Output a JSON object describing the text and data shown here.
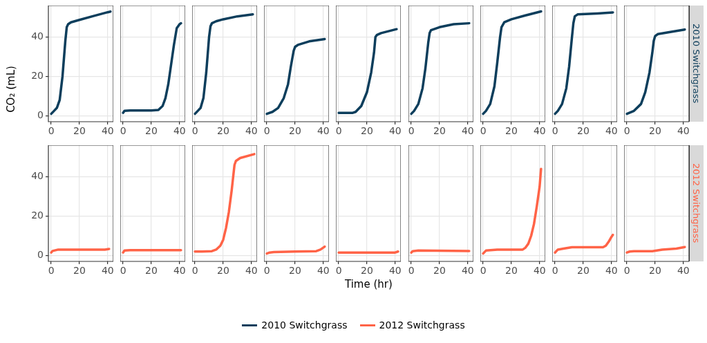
{
  "chart_data": [
    {
      "type": "line",
      "ylabel": "CO₂ (mL)",
      "xlim": [
        -2,
        44
      ],
      "ylim": [
        -3,
        56
      ],
      "xticks": [
        0,
        20,
        40
      ],
      "yticks": [
        0,
        20,
        40
      ],
      "grid": true,
      "legend": "bottom",
      "marker": "none",
      "line_style": "solid",
      "series": [
        {
          "name": "2010 Switchgrass",
          "color": "#0d3e5c",
          "x": [
            0,
            2,
            4,
            6,
            8,
            10,
            11,
            12,
            14,
            20,
            30,
            40,
            42
          ],
          "values": [
            1,
            2.5,
            4,
            8,
            20,
            38,
            45,
            46.5,
            47.5,
            48.7,
            50.7,
            52.6,
            52.9
          ]
        }
      ]
    },
    {
      "type": "line",
      "xlim": [
        -2,
        44
      ],
      "ylim": [
        -3,
        56
      ],
      "xticks": [
        0,
        20,
        40
      ],
      "yticks": [
        0,
        20,
        40
      ],
      "grid": true,
      "tick_labels": "x",
      "marker": "none",
      "line_style": "solid",
      "series": [
        {
          "color": "#0d3e5c",
          "x": [
            0,
            1,
            5,
            20,
            25,
            28,
            30,
            32,
            34,
            36,
            38,
            40,
            41
          ],
          "values": [
            1.5,
            2.5,
            2.7,
            2.7,
            3,
            5,
            9,
            16,
            26,
            36,
            44.5,
            46.5,
            47
          ]
        }
      ]
    },
    {
      "type": "line",
      "xlim": [
        -2,
        44
      ],
      "ylim": [
        -3,
        56
      ],
      "xticks": [
        0,
        20,
        40
      ],
      "yticks": [
        0,
        20,
        40
      ],
      "grid": true,
      "tick_labels": "x",
      "marker": "none",
      "line_style": "solid",
      "series": [
        {
          "color": "#0d3e5c",
          "x": [
            0,
            2,
            4,
            6,
            8,
            10,
            11,
            12,
            15,
            20,
            30,
            41
          ],
          "values": [
            1,
            2.5,
            4,
            9,
            22,
            40,
            45.5,
            47,
            48,
            49,
            50.5,
            51.5
          ]
        }
      ]
    },
    {
      "type": "line",
      "xlim": [
        -2,
        44
      ],
      "ylim": [
        -3,
        56
      ],
      "xticks": [
        0,
        20,
        40
      ],
      "yticks": [
        0,
        20,
        40
      ],
      "grid": true,
      "tick_labels": "x",
      "marker": "none",
      "line_style": "solid",
      "series": [
        {
          "color": "#0d3e5c",
          "x": [
            0,
            4,
            8,
            12,
            15,
            17,
            19,
            20,
            22,
            30,
            41
          ],
          "values": [
            1,
            2,
            4,
            9,
            16,
            25,
            33,
            35,
            36,
            37.8,
            39
          ]
        }
      ]
    },
    {
      "type": "line",
      "xlim": [
        -2,
        44
      ],
      "ylim": [
        -3,
        56
      ],
      "xticks": [
        0,
        20,
        40
      ],
      "yticks": [
        0,
        20,
        40
      ],
      "grid": true,
      "tick_labels": "x",
      "marker": "none",
      "line_style": "solid",
      "series": [
        {
          "color": "#0d3e5c",
          "x": [
            0,
            10,
            12,
            16,
            20,
            23,
            25,
            26,
            27,
            30,
            41
          ],
          "values": [
            1.5,
            1.5,
            2,
            5,
            12,
            22,
            32,
            40,
            41,
            42,
            44
          ]
        }
      ]
    },
    {
      "type": "line",
      "xlim": [
        -2,
        44
      ],
      "ylim": [
        -3,
        56
      ],
      "xticks": [
        0,
        20,
        40
      ],
      "yticks": [
        0,
        20,
        40
      ],
      "grid": true,
      "tick_labels": "x",
      "marker": "none",
      "line_style": "solid",
      "series": [
        {
          "color": "#0d3e5c",
          "x": [
            0,
            2,
            5,
            8,
            10,
            12,
            13,
            14,
            20,
            30,
            41
          ],
          "values": [
            1,
            2.5,
            6,
            14,
            24,
            37,
            42,
            43.5,
            45,
            46.5,
            47
          ]
        }
      ]
    },
    {
      "type": "line",
      "xlim": [
        -2,
        44
      ],
      "ylim": [
        -3,
        56
      ],
      "xticks": [
        0,
        20,
        40
      ],
      "yticks": [
        0,
        20,
        40
      ],
      "grid": true,
      "tick_labels": "x",
      "marker": "none",
      "line_style": "solid",
      "series": [
        {
          "color": "#0d3e5c",
          "x": [
            0,
            2,
            5,
            8,
            10,
            12,
            13,
            15,
            20,
            30,
            41
          ],
          "values": [
            1,
            2.5,
            6,
            15,
            27,
            40,
            45,
            47.5,
            49,
            51,
            53
          ]
        }
      ]
    },
    {
      "type": "line",
      "xlim": [
        -2,
        44
      ],
      "ylim": [
        -3,
        56
      ],
      "xticks": [
        0,
        20,
        40
      ],
      "yticks": [
        0,
        20,
        40
      ],
      "grid": true,
      "tick_labels": "x",
      "marker": "none",
      "line_style": "solid",
      "series": [
        {
          "color": "#0d3e5c",
          "x": [
            0,
            2,
            5,
            8,
            10,
            12,
            13,
            14,
            16,
            30,
            41
          ],
          "values": [
            1,
            2.5,
            6,
            14,
            25,
            40,
            47,
            50.5,
            51.5,
            52,
            52.5
          ]
        }
      ]
    },
    {
      "type": "line",
      "xlim": [
        -2,
        44
      ],
      "ylim": [
        -3,
        56
      ],
      "xticks": [
        0,
        20,
        40
      ],
      "yticks": [
        0,
        20,
        40
      ],
      "grid": true,
      "tick_labels": "x",
      "marker": "none",
      "line_style": "solid",
      "series": [
        {
          "name": "2010 Switchgrass",
          "color": "#0d3e5c",
          "x": [
            0,
            5,
            10,
            13,
            16,
            18,
            19,
            20,
            22,
            30,
            41
          ],
          "values": [
            1,
            2.5,
            6,
            12,
            22,
            32,
            38,
            40.5,
            41.5,
            42.5,
            43.8
          ]
        }
      ]
    },
    {
      "type": "line",
      "xlim": [
        -2,
        44
      ],
      "ylim": [
        -3,
        56
      ],
      "xticks": [
        0,
        20,
        40
      ],
      "yticks": [
        0,
        20,
        40
      ],
      "grid": true,
      "legend": "bottom",
      "marker": "none",
      "line_style": "solid",
      "series": [
        {
          "name": "2012 Switchgrass",
          "color": "#ff6347",
          "x": [
            0,
            1,
            5,
            20,
            38,
            41
          ],
          "values": [
            1.5,
            2.3,
            3,
            3,
            3,
            3.3
          ]
        }
      ]
    },
    {
      "type": "line",
      "xlim": [
        -2,
        44
      ],
      "ylim": [
        -3,
        56
      ],
      "xticks": [
        0,
        20,
        40
      ],
      "yticks": [
        0,
        20,
        40
      ],
      "grid": true,
      "tick_labels": "x",
      "marker": "none",
      "line_style": "solid",
      "series": [
        {
          "color": "#ff6347",
          "x": [
            0,
            1,
            5,
            41
          ],
          "values": [
            1.5,
            2.5,
            2.7,
            2.7
          ]
        }
      ]
    },
    {
      "type": "line",
      "xlim": [
        -2,
        44
      ],
      "ylim": [
        -3,
        56
      ],
      "xticks": [
        0,
        20,
        40
      ],
      "yticks": [
        0,
        20,
        40
      ],
      "grid": true,
      "tick_labels": "x",
      "marker": "none",
      "line_style": "solid",
      "series": [
        {
          "color": "#ff6347",
          "x": [
            0,
            5,
            12,
            15,
            18,
            20,
            22,
            24,
            26,
            28,
            29,
            32,
            42
          ],
          "values": [
            2,
            2,
            2.2,
            3,
            5,
            8,
            14,
            22,
            33,
            46,
            48,
            49.5,
            51.5
          ]
        }
      ]
    },
    {
      "type": "line",
      "xlim": [
        -2,
        44
      ],
      "ylim": [
        -3,
        56
      ],
      "xticks": [
        0,
        20,
        40
      ],
      "yticks": [
        0,
        20,
        40
      ],
      "grid": true,
      "tick_labels": "x",
      "marker": "none",
      "line_style": "solid",
      "series": [
        {
          "color": "#ff6347",
          "x": [
            0,
            2,
            5,
            20,
            35,
            38,
            41
          ],
          "values": [
            1,
            1.5,
            1.7,
            2,
            2.2,
            3,
            4.5
          ]
        }
      ]
    },
    {
      "type": "line",
      "xlabel": "Time (hr)",
      "xlim": [
        -2,
        44
      ],
      "ylim": [
        -3,
        56
      ],
      "xticks": [
        0,
        20,
        40
      ],
      "yticks": [
        0,
        20,
        40
      ],
      "grid": true,
      "tick_labels": "x",
      "marker": "none",
      "line_style": "solid",
      "series": [
        {
          "color": "#ff6347",
          "x": [
            0,
            5,
            40,
            42
          ],
          "values": [
            1.5,
            1.5,
            1.5,
            2
          ]
        }
      ]
    },
    {
      "type": "line",
      "xlim": [
        -2,
        44
      ],
      "ylim": [
        -3,
        56
      ],
      "xticks": [
        0,
        20,
        40
      ],
      "yticks": [
        0,
        20,
        40
      ],
      "grid": true,
      "tick_labels": "x",
      "marker": "none",
      "line_style": "solid",
      "series": [
        {
          "color": "#ff6347",
          "x": [
            0,
            1,
            5,
            41
          ],
          "values": [
            1.5,
            2.2,
            2.5,
            2.3
          ]
        }
      ]
    },
    {
      "type": "line",
      "xlim": [
        -2,
        44
      ],
      "ylim": [
        -3,
        56
      ],
      "xticks": [
        0,
        20,
        40
      ],
      "yticks": [
        0,
        20,
        40
      ],
      "grid": true,
      "tick_labels": "x",
      "marker": "none",
      "line_style": "solid",
      "series": [
        {
          "color": "#ff6347",
          "x": [
            0,
            2,
            10,
            28,
            30,
            32,
            34,
            36,
            38,
            40,
            41
          ],
          "values": [
            1,
            2.5,
            3,
            3,
            4,
            6,
            10,
            16,
            25,
            35,
            44
          ]
        }
      ]
    },
    {
      "type": "line",
      "xlim": [
        -2,
        44
      ],
      "ylim": [
        -3,
        56
      ],
      "xticks": [
        0,
        20,
        40
      ],
      "yticks": [
        0,
        20,
        40
      ],
      "grid": true,
      "tick_labels": "x",
      "marker": "none",
      "line_style": "solid",
      "series": [
        {
          "color": "#ff6347",
          "x": [
            0,
            2,
            6,
            12,
            34,
            36,
            38,
            40,
            41
          ],
          "values": [
            1.5,
            3,
            3.5,
            4.2,
            4.2,
            5,
            7,
            9.5,
            10.5
          ]
        }
      ]
    },
    {
      "type": "line",
      "xlim": [
        -2,
        44
      ],
      "ylim": [
        -3,
        56
      ],
      "xticks": [
        0,
        20,
        40
      ],
      "yticks": [
        0,
        20,
        40
      ],
      "grid": true,
      "tick_labels": "x",
      "marker": "none",
      "line_style": "solid",
      "series": [
        {
          "name": "2012 Switchgrass",
          "color": "#ff6347",
          "x": [
            0,
            2,
            5,
            18,
            25,
            35,
            41
          ],
          "values": [
            1.5,
            2,
            2.2,
            2.2,
            3,
            3.5,
            4.3
          ]
        }
      ]
    }
  ]
}
